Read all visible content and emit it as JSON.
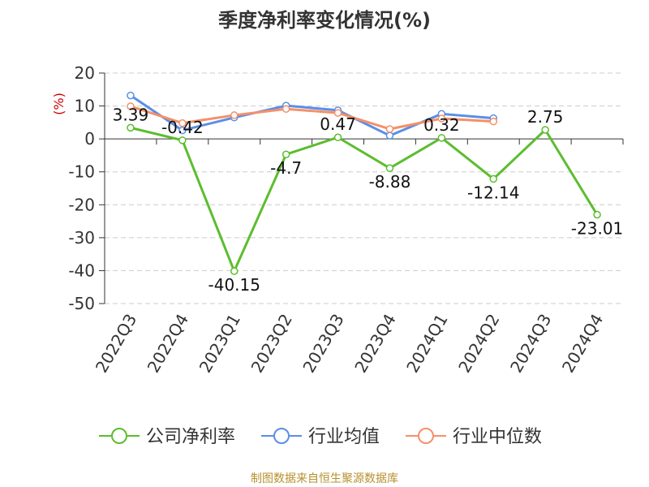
{
  "source_note": "制图数据来自恒生聚源数据库",
  "colors": {
    "company": "#5cbd2e",
    "industry_avg": "#5b8ee6",
    "industry_median": "#f4906a",
    "ylabel": "#cc0000",
    "source": "#b8902e",
    "grid": "#cccccc",
    "axis": "#333333"
  },
  "chart_data": {
    "type": "line",
    "title": "季度净利率变化情况(%)",
    "ylabel": "(%)",
    "xlabel": "",
    "ylim": [
      -50,
      20
    ],
    "yticks": [
      20,
      10,
      0,
      -10,
      -20,
      -30,
      -40,
      -50
    ],
    "ytick_labels": [
      "20",
      "10",
      "0",
      "-10",
      "-20",
      "-30",
      "-40",
      "-50"
    ],
    "grid": "horizontal dashed",
    "legend_position": "bottom",
    "categories": [
      "2022Q3",
      "2022Q4",
      "2023Q1",
      "2023Q2",
      "2023Q3",
      "2023Q4",
      "2024Q1",
      "2024Q2",
      "2024Q3",
      "2024Q4"
    ],
    "series": [
      {
        "name": "公司净利率",
        "values": [
          3.39,
          -0.42,
          -40.15,
          -4.7,
          0.47,
          -8.88,
          0.32,
          -12.14,
          2.75,
          -23.01
        ],
        "labels": [
          "3.39",
          "-0.42",
          "-40.15",
          "-4.7",
          "0.47",
          "-8.88",
          "0.32",
          "-12.14",
          "2.75",
          "-23.01"
        ]
      },
      {
        "name": "行业均值",
        "values": [
          13.2,
          2.6,
          6.5,
          10.1,
          8.7,
          1.0,
          7.6,
          6.3,
          null,
          null
        ]
      },
      {
        "name": "行业中位数",
        "values": [
          9.9,
          4.8,
          7.2,
          9.1,
          7.9,
          3.0,
          6.2,
          5.3,
          null,
          null
        ]
      }
    ]
  }
}
